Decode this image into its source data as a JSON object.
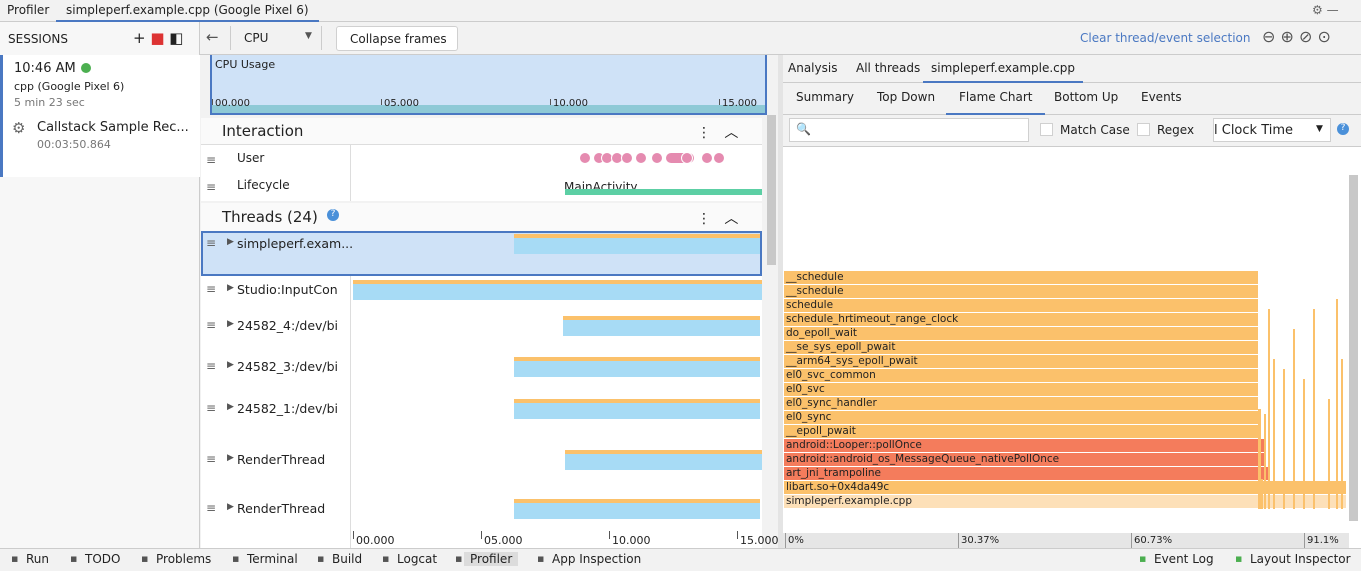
{
  "title_bar": {
    "tabs": [
      "Profiler",
      "simpleperf.example.cpp (Google Pixel 6)"
    ]
  },
  "sessions": {
    "header": "SESSIONS",
    "time": "10:46 AM",
    "device": "cpp (Google Pixel 6)",
    "ago": "5 min 23 sec",
    "item": "Callstack Sample Rec...",
    "duration": "00:03:50.864"
  },
  "toolbar": {
    "selector": "CPU",
    "button": "Collapse frames",
    "link": "Clear thread/event selection"
  },
  "cpu_usage": {
    "label": "CPU Usage",
    "ticks": [
      "00.000",
      "05.000",
      "10.000",
      "15.000"
    ]
  },
  "interaction": {
    "title": "Interaction",
    "rows": [
      "User",
      "Lifecycle"
    ],
    "activity": "MainActivity"
  },
  "threads": {
    "title": "Threads (24)",
    "rows": [
      "simpleperf.exam...",
      "Studio:InputCon",
      "24582_4:/dev/bi",
      "24582_3:/dev/bi",
      "24582_1:/dev/bi",
      "RenderThread",
      "RenderThread"
    ]
  },
  "timeline_axis": [
    "00.000",
    "05.000",
    "10.000",
    "15.000"
  ],
  "analysis": {
    "tabs": [
      "Analysis",
      "All threads",
      "simpleperf.example.cpp"
    ],
    "subtabs": [
      "Summary",
      "Top Down",
      "Flame Chart",
      "Bottom Up",
      "Events"
    ],
    "match_case": "Match Case",
    "regex": "Regex",
    "clock": "l Clock Time"
  },
  "flame_chart": {
    "frames": [
      "__schedule",
      "__schedule",
      "schedule",
      "schedule_hrtimeout_range_clock",
      "do_epoll_wait",
      "__se_sys_epoll_pwait",
      "__arm64_sys_epoll_pwait",
      "el0_svc_common",
      "el0_svc",
      "el0_sync_handler",
      "el0_sync",
      "__epoll_pwait",
      "android::Looper::pollOnce",
      "android::android_os_MessageQueue_nativePollOnce",
      "art_jni_trampoline",
      "libart.so+0x4da49c",
      "simpleperf.example.cpp"
    ],
    "axis": [
      "0%",
      "30.37%",
      "60.73%",
      "91.1%"
    ]
  },
  "status_bar": {
    "left": [
      "Run",
      "TODO",
      "Problems",
      "Terminal",
      "Build",
      "Logcat",
      "Profiler",
      "App Inspection"
    ],
    "right": [
      "Event Log",
      "Layout Inspector"
    ]
  }
}
